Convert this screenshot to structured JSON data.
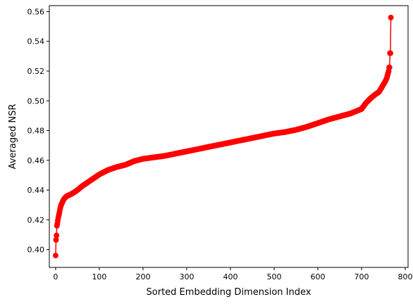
{
  "chart_data": {
    "type": "line",
    "xlabel": "Sorted Embedding Dimension Index",
    "ylabel": "Averaged NSR",
    "xlim": [
      -14.4,
      806.4
    ],
    "ylim": [
      0.388,
      0.564
    ],
    "xticks": [
      0,
      100,
      200,
      300,
      400,
      500,
      600,
      700,
      800
    ],
    "yticks": [
      0.4,
      0.42,
      0.44,
      0.46,
      0.48,
      0.5,
      0.52,
      0.54,
      0.56
    ],
    "xtick_labels": [
      "0",
      "100",
      "200",
      "300",
      "400",
      "500",
      "600",
      "700",
      "800"
    ],
    "ytick_labels": [
      "0.40",
      "0.42",
      "0.44",
      "0.46",
      "0.48",
      "0.50",
      "0.52",
      "0.54",
      "0.56"
    ],
    "grid": false,
    "legend": "none",
    "series_color": "#ff0000",
    "marker": "circle",
    "n_points": 768,
    "series": [
      {
        "x": [
          0,
          1,
          2,
          3,
          4,
          6,
          8,
          10,
          12,
          15,
          18,
          22,
          26,
          30,
          40,
          50,
          60,
          70,
          80,
          90,
          100,
          120,
          140,
          160,
          180,
          200,
          225,
          250,
          275,
          300,
          325,
          350,
          375,
          400,
          425,
          450,
          475,
          500,
          525,
          550,
          575,
          600,
          625,
          650,
          675,
          700,
          710,
          720,
          730,
          740,
          745,
          750,
          755,
          758,
          760,
          762,
          763,
          764,
          765,
          766,
          767
        ],
        "y": [
          0.396,
          0.4065,
          0.4095,
          0.416,
          0.4175,
          0.4215,
          0.424,
          0.427,
          0.4295,
          0.4315,
          0.4335,
          0.435,
          0.436,
          0.4365,
          0.438,
          0.44,
          0.4425,
          0.4445,
          0.4465,
          0.4485,
          0.4505,
          0.4535,
          0.4555,
          0.457,
          0.4595,
          0.461,
          0.462,
          0.463,
          0.4645,
          0.466,
          0.4675,
          0.469,
          0.4705,
          0.472,
          0.4735,
          0.475,
          0.4765,
          0.478,
          0.479,
          0.4805,
          0.4825,
          0.485,
          0.4875,
          0.4895,
          0.4915,
          0.4945,
          0.4985,
          0.5015,
          0.504,
          0.506,
          0.5085,
          0.511,
          0.5135,
          0.5155,
          0.518,
          0.52,
          0.5225,
          0.5225,
          0.532,
          0.532,
          0.556
        ]
      }
    ]
  }
}
